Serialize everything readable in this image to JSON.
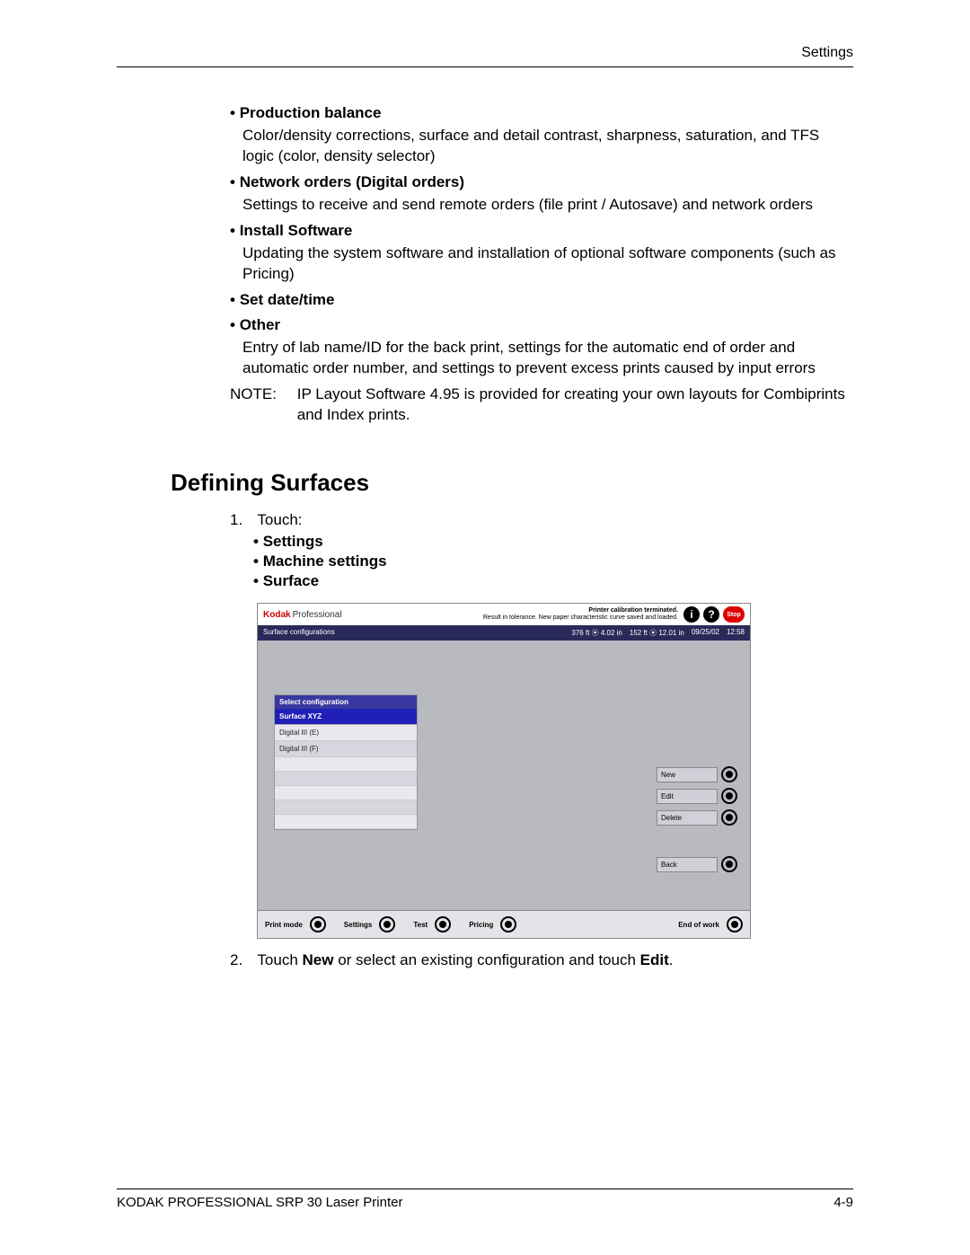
{
  "header": {
    "section": "Settings"
  },
  "bullets": [
    {
      "title": "Production balance",
      "body": "Color/density corrections, surface and detail contrast, sharpness, saturation, and TFS logic (color, density selector)"
    },
    {
      "title": "Network orders (Digital orders)",
      "body": "Settings to receive and send remote orders (file print / Autosave) and network orders"
    },
    {
      "title": "Install Software",
      "body": "Updating the system software and installation of optional software components (such as Pricing)"
    },
    {
      "title": "Set date/time",
      "body": ""
    },
    {
      "title": "Other",
      "body": "Entry of lab name/ID for the back print, settings for the automatic end of order and automatic order number, and settings to prevent excess prints caused by input errors"
    }
  ],
  "note": {
    "label": "NOTE:",
    "body": "IP Layout Software 4.95 is provided for creating your own layouts for Combiprints and Index prints."
  },
  "section_title": "Defining Surfaces",
  "step1": {
    "num": "1.",
    "text": "Touch:",
    "subs": [
      "Settings",
      "Machine settings",
      "Surface"
    ]
  },
  "screenshot": {
    "brand1": "Kodak",
    "brand2": "Professional",
    "status_line1": "Printer calibration terminated.",
    "status_line2": "Result in tolerance. New paper characteristic curve saved and loaded.",
    "info_glyph": "i",
    "help_glyph": "?",
    "stop": "Stop",
    "bar_title": "Surface configurations",
    "bar_right": {
      "a": "376 ft ⦿ 4.02 in",
      "b": "152 ft ⦿ 12.01 in",
      "date": "09/25/02",
      "time": "12:58"
    },
    "panel_header": "Select configuration",
    "panel_selected": "Surface XYZ",
    "panel_rows": [
      "Digital III (E)",
      "Digital III (F)"
    ],
    "side_buttons": [
      "New",
      "Edit",
      "Delete"
    ],
    "back_button": "Back",
    "footer_buttons": [
      "Print mode",
      "Settings",
      "Test",
      "Pricing",
      "End of work"
    ]
  },
  "step2": {
    "num": "2.",
    "pre": "Touch ",
    "b1": "New",
    "mid": " or select an existing configuration and touch ",
    "b2": "Edit",
    "post": "."
  },
  "footer": {
    "left": "KODAK PROFESSIONAL SRP 30 Laser Printer",
    "right": "4-9"
  }
}
